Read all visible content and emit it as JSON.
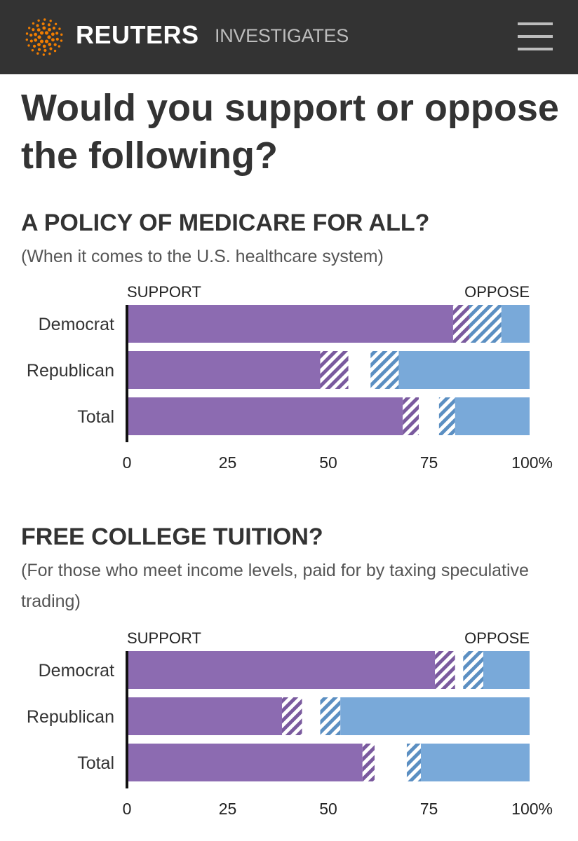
{
  "header": {
    "brand": "REUTERS",
    "brand_sub": "INVESTIGATES",
    "logo_icon": "reuters-dot-logo-icon",
    "menu_icon": "hamburger-menu-icon",
    "background": "#333333",
    "accent": "#f07d00"
  },
  "title": "Would you support or oppose the following?",
  "sections": [
    {
      "title": "A POLICY OF MEDICARE FOR ALL?",
      "subtitle": "(When it comes to the U.S. healthcare system)"
    },
    {
      "title": "FREE COLLEGE TUITION?",
      "subtitle": "(For those who meet income levels, paid for by taxing speculative trading)"
    }
  ],
  "chart_data": [
    {
      "type": "bar",
      "stacked": true,
      "orientation": "horizontal",
      "left_label": "SUPPORT",
      "right_label": "OPPOSE",
      "categories": [
        "Democrat",
        "Republican",
        "Total"
      ],
      "series": [
        {
          "color": "#8c6bb1",
          "values": [
            81,
            48,
            68.5
          ]
        },
        {
          "color": "#8c6bb1",
          "hatched": true,
          "values": [
            4,
            7,
            4
          ]
        },
        {
          "color": "#ffffff",
          "values": [
            0,
            5.5,
            5
          ]
        },
        {
          "color": "#79a9d9",
          "hatched": true,
          "values": [
            8,
            7,
            4
          ]
        },
        {
          "color": "#79a9d9",
          "values": [
            7,
            32.5,
            18.5
          ]
        }
      ],
      "x_ticks": [
        "0",
        "25",
        "50",
        "75",
        "100%"
      ],
      "xlim": [
        0,
        100
      ]
    },
    {
      "type": "bar",
      "stacked": true,
      "orientation": "horizontal",
      "left_label": "SUPPORT",
      "right_label": "OPPOSE",
      "categories": [
        "Democrat",
        "Republican",
        "Total"
      ],
      "series": [
        {
          "color": "#8c6bb1",
          "values": [
            76.5,
            38.5,
            58.5
          ]
        },
        {
          "color": "#8c6bb1",
          "hatched": true,
          "values": [
            5,
            5,
            3
          ]
        },
        {
          "color": "#ffffff",
          "values": [
            2,
            4.5,
            8
          ]
        },
        {
          "color": "#79a9d9",
          "hatched": true,
          "values": [
            5,
            5,
            3.5
          ]
        },
        {
          "color": "#79a9d9",
          "values": [
            11.5,
            47,
            27
          ]
        }
      ],
      "x_ticks": [
        "0",
        "25",
        "50",
        "75",
        "100%"
      ],
      "xlim": [
        0,
        100
      ]
    }
  ]
}
